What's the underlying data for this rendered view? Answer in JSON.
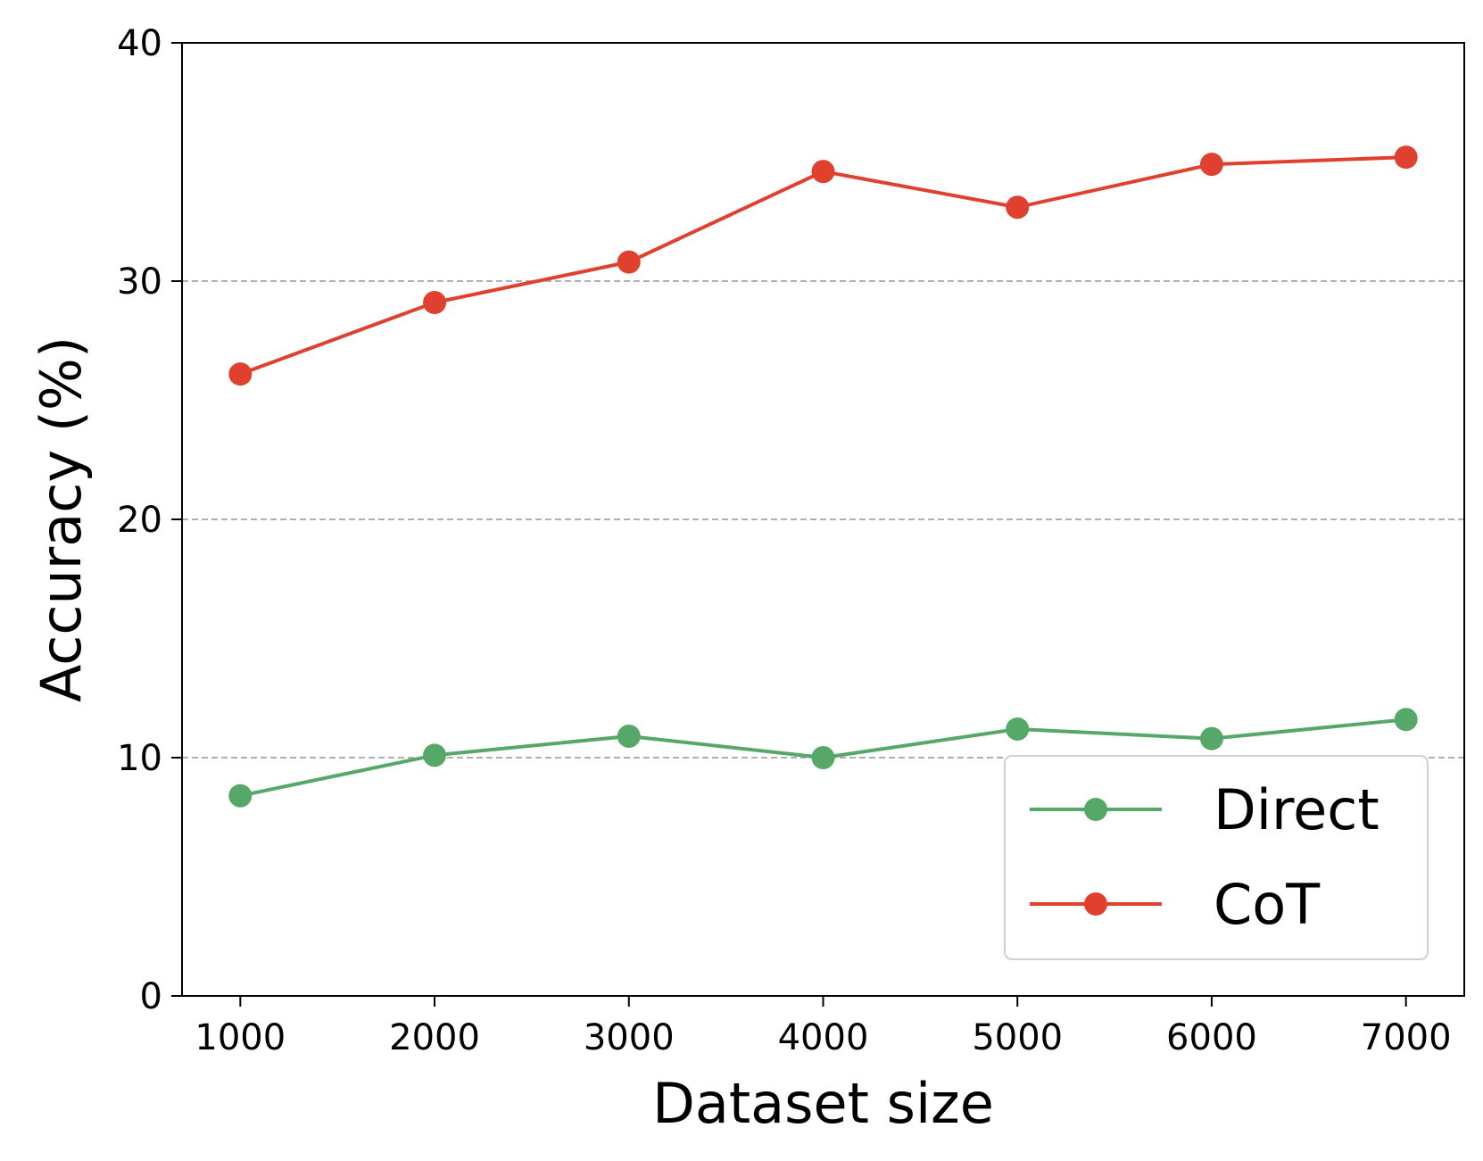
{
  "chart_data": {
    "type": "line",
    "title": "",
    "xlabel": "Dataset size",
    "ylabel": "Accuracy (%)",
    "x": [
      1000,
      2000,
      3000,
      4000,
      5000,
      6000,
      7000
    ],
    "x_tick_labels": [
      "1000",
      "2000",
      "3000",
      "4000",
      "5000",
      "6000",
      "7000"
    ],
    "y_ticks": [
      0,
      10,
      20,
      30,
      40
    ],
    "y_tick_labels": [
      "0",
      "10",
      "20",
      "30",
      "40"
    ],
    "xlim": [
      700,
      7300
    ],
    "ylim": [
      0,
      40
    ],
    "grid": "y-dashed",
    "legend_position": "lower-right",
    "series": [
      {
        "name": "Direct",
        "color": "#55a868",
        "values": [
          8.4,
          10.1,
          10.9,
          10.0,
          11.2,
          10.8,
          11.6
        ]
      },
      {
        "name": "CoT",
        "color": "#e0402e",
        "values": [
          26.1,
          29.1,
          30.8,
          34.6,
          33.1,
          34.9,
          35.2
        ]
      }
    ]
  }
}
